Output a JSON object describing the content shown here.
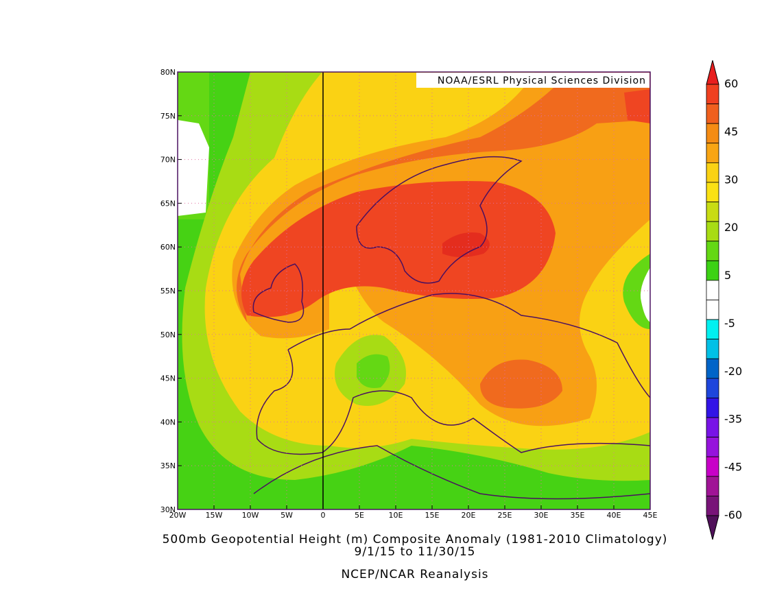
{
  "title": {
    "line1": "500mb Geopotential Height (m) Composite Anomaly (1981-2010 Climatology)",
    "line2": "9/1/15  to 11/30/15",
    "line3": "NCEP/NCAR Reanalysis"
  },
  "credit": "NOAA/ESRL Physical Sciences Division",
  "map": {
    "lon_labels": [
      "20W",
      "15W",
      "10W",
      "5W",
      "0",
      "5E",
      "10E",
      "15E",
      "20E",
      "25E",
      "30E",
      "35E",
      "40E",
      "45E"
    ],
    "lat_labels": [
      "80N",
      "75N",
      "70N",
      "65N",
      "60N",
      "55N",
      "50N",
      "45N",
      "40N",
      "35N",
      "30N"
    ]
  },
  "colorbar": {
    "labels": [
      60,
      45,
      30,
      20,
      5,
      -5,
      -20,
      -35,
      -45,
      -60
    ],
    "colors": [
      "#f04020",
      "#f0601e",
      "#f58c14",
      "#f8a514",
      "#fad214",
      "#fae114",
      "#c8dc14",
      "#a8dc14",
      "#64d814",
      "#3cd214",
      "#ffffff",
      "#ffffff",
      "#00f0f0",
      "#00c0e6",
      "#0064c8",
      "#1e46dc",
      "#3214e6",
      "#7814e6",
      "#9614dc",
      "#c800c8",
      "#a01496",
      "#781478"
    ],
    "top_color": "#e81e1e",
    "bottom_color": "#50105a"
  }
}
